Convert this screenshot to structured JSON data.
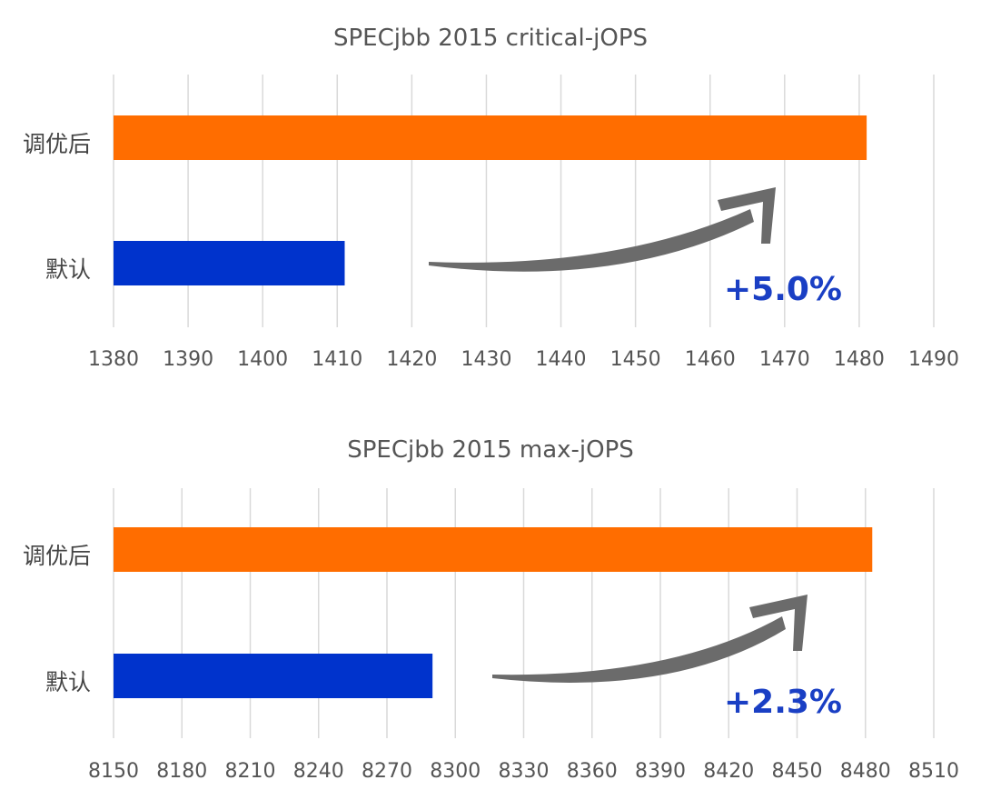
{
  "chart_data": [
    {
      "type": "bar",
      "orientation": "horizontal",
      "title": "SPECjbb 2015 critical-jOPS",
      "categories": [
        "调优后",
        "默认"
      ],
      "values": [
        1481,
        1411
      ],
      "colors": [
        "#ff6d00",
        "#0033cc"
      ],
      "xlim": [
        1380,
        1490
      ],
      "xticks": [
        "1380",
        "1390",
        "1400",
        "1410",
        "1420",
        "1430",
        "1440",
        "1450",
        "1460",
        "1470",
        "1480",
        "1490"
      ],
      "grid": true,
      "annotation": "+5.0%",
      "annotation_color": "#1a3fc4"
    },
    {
      "type": "bar",
      "orientation": "horizontal",
      "title": "SPECjbb 2015 max-jOPS",
      "categories": [
        "调优后",
        "默认"
      ],
      "values": [
        8483,
        8290
      ],
      "colors": [
        "#ff6d00",
        "#0033cc"
      ],
      "xlim": [
        8150,
        8510
      ],
      "xticks": [
        "8150",
        "8180",
        "8210",
        "8240",
        "8270",
        "8300",
        "8330",
        "8360",
        "8390",
        "8420",
        "8450",
        "8480",
        "8510"
      ],
      "grid": true,
      "annotation": "+2.3%",
      "annotation_color": "#1a3fc4"
    }
  ]
}
